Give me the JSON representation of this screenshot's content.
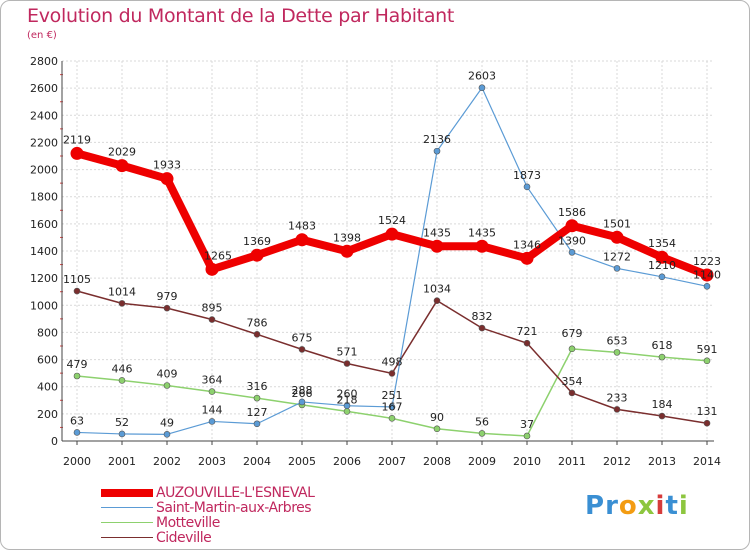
{
  "header": {
    "title": "Evolution du Montant de la Dette par Habitant",
    "subtitle": "(en €)"
  },
  "logo": {
    "text": "Proxiti",
    "colors": [
      "#3a8fd3",
      "#3a8fd3",
      "#f39c12",
      "#8dc63f",
      "#d63b3b",
      "#3a8fd3",
      "#8dc63f"
    ]
  },
  "chart_data": {
    "type": "line",
    "title": "Evolution du Montant de la Dette par Habitant",
    "subtitle": "(en €)",
    "xlabel": "",
    "ylabel": "",
    "ylim": [
      0,
      2800
    ],
    "yticks": [
      0,
      200,
      400,
      600,
      800,
      1000,
      1200,
      1400,
      1600,
      1800,
      2000,
      2200,
      2400,
      2600,
      2800
    ],
    "x": [
      "2000",
      "2001",
      "2002",
      "2003",
      "2004",
      "2005",
      "2006",
      "2007",
      "2008",
      "2009",
      "2010",
      "2011",
      "2012",
      "2013",
      "2014"
    ],
    "grid": true,
    "legend": "bottom-left",
    "series": [
      {
        "name": "AUZOUVILLE-L'ESNEVAL",
        "color": "#ee0000",
        "values": [
          2119,
          2029,
          1933,
          1265,
          1369,
          1483,
          1398,
          1524,
          1435,
          1435,
          1346,
          1586,
          1501,
          1354,
          1223
        ]
      },
      {
        "name": "Saint-Martin-aux-Arbres",
        "color": "#5b9bd5",
        "values": [
          63,
          52,
          49,
          144,
          127,
          288,
          260,
          251,
          2136,
          2603,
          1873,
          1390,
          1272,
          1210,
          1140
        ]
      },
      {
        "name": "Motteville",
        "color": "#8dd16e",
        "values": [
          479,
          446,
          409,
          364,
          316,
          266,
          218,
          167,
          90,
          56,
          37,
          679,
          653,
          618,
          591
        ]
      },
      {
        "name": "Cideville",
        "color": "#7a2e2e",
        "values": [
          1105,
          1014,
          979,
          895,
          786,
          675,
          571,
          498,
          1034,
          832,
          721,
          354,
          233,
          184,
          131
        ]
      }
    ]
  }
}
